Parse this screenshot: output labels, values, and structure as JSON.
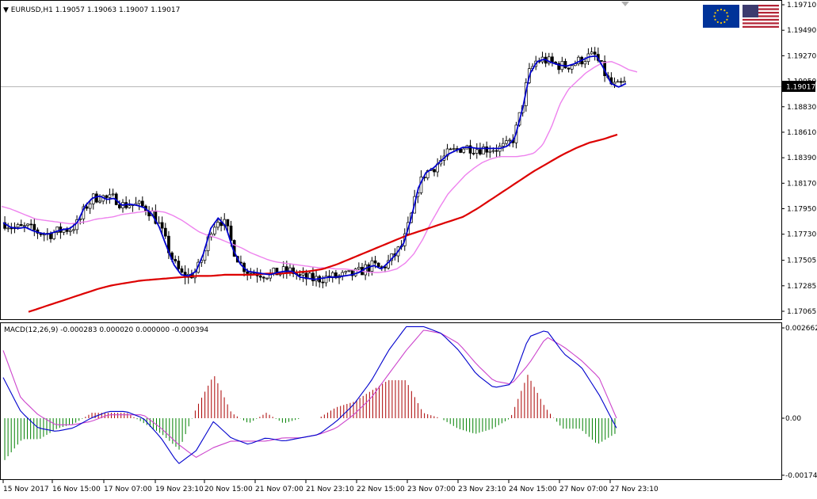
{
  "main_header": {
    "symbol": "EURUSD,H1",
    "open": "1.19057",
    "high": "1.19063",
    "low": "1.19007",
    "close": "1.19017"
  },
  "macd_header": {
    "name": "MACD(12,26,9)",
    "main": "-0.000283",
    "signal": "0.000020",
    "v3": "0.000000",
    "hist": "-0.000394"
  },
  "price_labels": [
    "1.19710",
    "1.19490",
    "1.19270",
    "1.19050",
    "1.18830",
    "1.18610",
    "1.18390",
    "1.18170",
    "1.17950",
    "1.17730",
    "1.17505",
    "1.17285",
    "1.17065"
  ],
  "current_price": "1.19017",
  "macd_labels": [
    "0.002662",
    "0.00",
    "-0.001744"
  ],
  "time_labels": [
    "15 Nov 2017",
    "16 Nov 15:00",
    "17 Nov 07:00",
    "19 Nov 23:10",
    "20 Nov 15:00",
    "21 Nov 07:00",
    "21 Nov 23:10",
    "22 Nov 15:00",
    "23 Nov 07:00",
    "23 Nov 23:10",
    "24 Nov 15:00",
    "27 Nov 07:00",
    "27 Nov 23:10"
  ],
  "flags": {
    "left": "eu-flag-icon",
    "right": "us-flag-icon"
  },
  "colors": {
    "candle": "#000000",
    "ma_fast": "#0000cd",
    "ma_mid": "#ee82ee",
    "ma_slow": "#dd0000",
    "macd_line": "#0000cd",
    "macd_signal": "#cc44cc",
    "hist_pos": "#aa0000",
    "hist_neg": "#008000"
  },
  "chart_data": {
    "type": "candlestick",
    "symbol": "EURUSD",
    "timeframe": "H1",
    "ylim": [
      1.17065,
      1.1971
    ],
    "last_price": 1.19017,
    "series": [
      {
        "name": "EMA fast (blue)",
        "values": [
          1.1783,
          1.1779,
          1.1778,
          1.1779,
          1.1776,
          1.1774,
          1.1773,
          1.1775,
          1.1777,
          1.1778,
          1.1783,
          1.1797,
          1.1804,
          1.1806,
          1.1803,
          1.1804,
          1.1798,
          1.1799,
          1.1798,
          1.1796,
          1.1791,
          1.178,
          1.1763,
          1.1747,
          1.1738,
          1.1737,
          1.1741,
          1.1756,
          1.1778,
          1.1787,
          1.178,
          1.176,
          1.1747,
          1.1741,
          1.174,
          1.1739,
          1.1738,
          1.174,
          1.1741,
          1.1741,
          1.1736,
          1.1735,
          1.1734,
          1.1735,
          1.1736,
          1.1736,
          1.1737,
          1.1738,
          1.174,
          1.1744,
          1.1746,
          1.1743,
          1.1749,
          1.1756,
          1.1765,
          1.1786,
          1.1813,
          1.1826,
          1.183,
          1.1836,
          1.1842,
          1.1845,
          1.1848,
          1.1848,
          1.1847,
          1.1847,
          1.1847,
          1.1847,
          1.1849,
          1.1856,
          1.188,
          1.1911,
          1.1922,
          1.1924,
          1.1921,
          1.1919,
          1.1918,
          1.192,
          1.1923,
          1.1926,
          1.1927,
          1.1916,
          1.1903,
          1.19,
          1.1903
        ]
      },
      {
        "name": "SMA mid (violet)",
        "values": [
          1.1797,
          1.1795,
          1.1792,
          1.1789,
          1.1786,
          1.1785,
          1.1784,
          1.1783,
          1.1782,
          1.1783,
          1.1784,
          1.1786,
          1.1787,
          1.1788,
          1.179,
          1.1791,
          1.1792,
          1.1793,
          1.1793,
          1.1792,
          1.1789,
          1.1785,
          1.178,
          1.1775,
          1.1772,
          1.177,
          1.1767,
          1.1764,
          1.1761,
          1.1757,
          1.1754,
          1.1751,
          1.1749,
          1.1748,
          1.1747,
          1.1746,
          1.1745,
          1.1744,
          1.1744,
          1.1743,
          1.1743,
          1.1742,
          1.1741,
          1.174,
          1.174,
          1.1741,
          1.1743,
          1.1748,
          1.1756,
          1.1768,
          1.1783,
          1.1796,
          1.1808,
          1.1816,
          1.1824,
          1.183,
          1.1835,
          1.1838,
          1.184,
          1.184,
          1.184,
          1.1841,
          1.1843,
          1.185,
          1.1865,
          1.1885,
          1.1898,
          1.1905,
          1.1912,
          1.1917,
          1.1921,
          1.1922,
          1.1919,
          1.1915,
          1.1913
        ]
      },
      {
        "name": "SMA slow (red)",
        "values": [
          1.1706,
          1.171,
          1.1714,
          1.1718,
          1.1722,
          1.1726,
          1.1729,
          1.1731,
          1.1733,
          1.1734,
          1.1735,
          1.1736,
          1.1737,
          1.1737,
          1.1738,
          1.1738,
          1.1738,
          1.1739,
          1.1739,
          1.174,
          1.1741,
          1.1743,
          1.1747,
          1.1752,
          1.1757,
          1.1762,
          1.1767,
          1.1772,
          1.1776,
          1.178,
          1.1784,
          1.1788,
          1.1795,
          1.1803,
          1.1811,
          1.1819,
          1.1827,
          1.1834,
          1.1841,
          1.1847,
          1.1852,
          1.1855,
          1.1859
        ]
      },
      {
        "name": "MACD main",
        "values": [
          0.0012,
          0.0002,
          -0.0003,
          -0.0004,
          -0.0003,
          0.0,
          0.0002,
          0.0002,
          0.0,
          -0.0006,
          -0.0014,
          -0.001,
          -0.0001,
          -0.0006,
          -0.0008,
          -0.0006,
          -0.0007,
          -0.0006,
          -0.0005,
          -0.0001,
          0.0004,
          0.0011,
          0.002,
          0.0027,
          0.0027,
          0.0025,
          0.002,
          0.0013,
          0.0009,
          0.001,
          0.0024,
          0.0026,
          0.0019,
          0.0015,
          0.0007,
          -0.0003
        ]
      },
      {
        "name": "MACD signal",
        "values": [
          0.002,
          0.0006,
          0.0001,
          -0.0002,
          -0.0002,
          -0.0001,
          0.0001,
          0.0001,
          0.0001,
          -0.0003,
          -0.0008,
          -0.0012,
          -0.0009,
          -0.0007,
          -0.0007,
          -0.0007,
          -0.0006,
          -0.0006,
          -0.0005,
          -0.0003,
          0.0001,
          0.0006,
          0.0013,
          0.002,
          0.0026,
          0.0025,
          0.0022,
          0.0016,
          0.0011,
          0.001,
          0.0016,
          0.0024,
          0.0021,
          0.0017,
          0.0012,
          0.0
        ]
      }
    ]
  }
}
